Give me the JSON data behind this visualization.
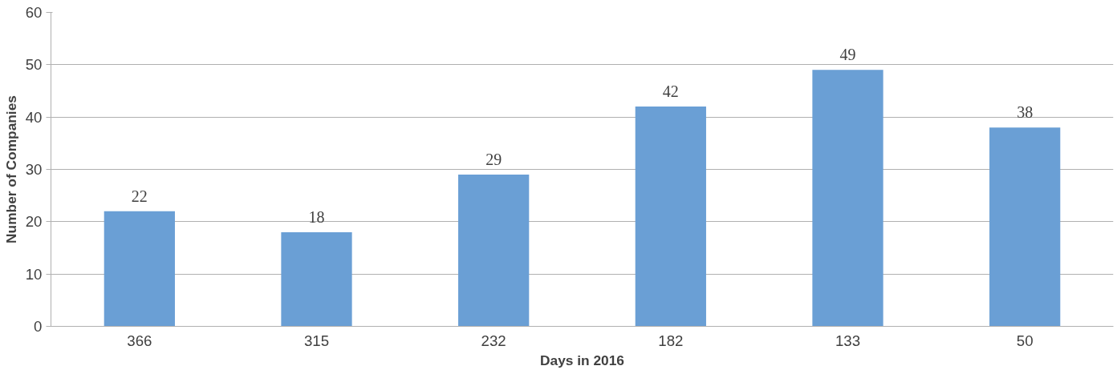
{
  "chart_data": {
    "type": "bar",
    "categories": [
      "366",
      "315",
      "232",
      "182",
      "133",
      "50"
    ],
    "values": [
      22,
      18,
      29,
      42,
      49,
      38
    ],
    "color": "#6a9fd5",
    "xlabel": "Days in 2016",
    "ylabel": "Number of Companies",
    "ylim": [
      0,
      60
    ],
    "yticks": [
      0,
      10,
      20,
      30,
      40,
      50,
      60
    ],
    "grid": "y",
    "data_labels": true
  }
}
